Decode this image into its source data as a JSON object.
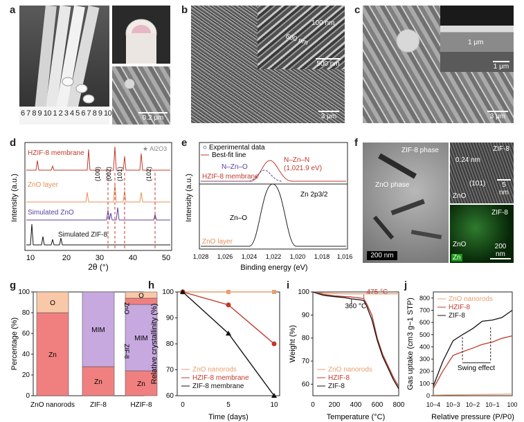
{
  "panel_labels": {
    "a": "a",
    "b": "b",
    "c": "c",
    "d": "d",
    "e": "e",
    "f": "f",
    "g": "g",
    "h": "h",
    "i": "i",
    "j": "j"
  },
  "panel_a": {
    "ruler": "6 7 8 9 10 1 2 3 4 5 6 7 8 9 10",
    "scale": "0.2 μm"
  },
  "panel_b": {
    "scale_main": "3 μm",
    "scale_inset": "500 nm",
    "ann_100": "100 nm",
    "ann_600": "600 nm"
  },
  "panel_c": {
    "scale_main": "3 μm",
    "scale_inset": "1 μm",
    "ann_1um": "1 μm"
  },
  "panel_d": {
    "series": [
      "HZIF-8 membrane",
      "ZnO layer",
      "Simulated ZnO",
      "Simulated ZIF-8"
    ],
    "ylabel": "Intensity (a.u.)",
    "xlabel": "2θ (°)",
    "xticks": [
      "10",
      "20",
      "30",
      "40",
      "50"
    ],
    "legend_star": "★ Al2O3",
    "peaks": [
      "(100)",
      "(002)",
      "(101)",
      "(102)"
    ]
  },
  "panel_e": {
    "legend": [
      "Experimental data",
      "Best-fit line"
    ],
    "labels": {
      "nzno": "N–Zn–O",
      "nznn": "N–Zn–N",
      "nznn_val": "(1,021.9 eV)",
      "hzif": "HZIF-8 membrane",
      "zn2p": "Zn 2p3/2",
      "zno_peak": "Zn–O",
      "zno_layer": "ZnO layer"
    },
    "ylabel": "Intensity (a.u.)",
    "xlabel": "Binding energy (eV)",
    "xticks": [
      "1,028",
      "1,026",
      "1,024",
      "1,022",
      "1,020",
      "1,018",
      "1,016"
    ]
  },
  "panel_f": {
    "labels": {
      "zif_phase": "ZIF-8 phase",
      "zno_phase": "ZnO phase",
      "zif8": "ZIF-8",
      "d024": "0.24 nm",
      "p101": "(101)",
      "zno": "ZnO",
      "zif8b": "ZIF-8",
      "zno2": "ZnO",
      "zn": "Zn"
    },
    "scale_main": "200 nm",
    "scale_hr": "5 nm",
    "scale_map": "200 nm"
  },
  "chart_data": [
    {
      "panel": "g",
      "type": "bar",
      "stacked": true,
      "categories": [
        "ZnO nanorods",
        "ZIF-8",
        "HZIF-8"
      ],
      "series": [
        {
          "name": "Zn",
          "values": [
            80,
            28,
            24
          ]
        },
        {
          "name": "O",
          "values": [
            20,
            0,
            6
          ]
        },
        {
          "name": "MIM",
          "values": [
            0,
            72,
            64
          ]
        },
        {
          "name": "O",
          "values": [
            0,
            0,
            6
          ]
        }
      ],
      "ylabel": "Percentage (%)",
      "ylim": [
        0,
        100
      ],
      "yticks": [
        "0",
        "20",
        "40",
        "60",
        "80",
        "100"
      ],
      "segment_labels": [
        "O",
        "Zn",
        "MIM",
        "Zn",
        "O",
        "Zn",
        "MIM",
        "Zn"
      ],
      "annotations": [
        "ZnO",
        "ZIF-8"
      ],
      "colors": {
        "Zn": "#f08080",
        "O": "#f9c8a8",
        "MIM": "#c7a9e0"
      }
    },
    {
      "panel": "h",
      "type": "line",
      "x": [
        0,
        5,
        10
      ],
      "series": [
        {
          "name": "ZnO nanorods",
          "values": [
            100,
            100,
            100
          ],
          "color": "#e8a070"
        },
        {
          "name": "HZIF-8 membrane",
          "values": [
            100,
            95,
            80
          ],
          "color": "#c0392b"
        },
        {
          "name": "ZIF-8 membrane",
          "values": [
            100,
            84,
            60
          ],
          "color": "#111111"
        }
      ],
      "xlabel": "Time (days)",
      "ylabel": "Relative crystallinity (%)",
      "ylim": [
        60,
        100
      ],
      "xticks": [
        "0",
        "5",
        "10"
      ],
      "yticks": [
        "60",
        "70",
        "80",
        "90",
        "100"
      ]
    },
    {
      "panel": "i",
      "type": "line",
      "x": [
        0,
        100,
        200,
        300,
        360,
        400,
        450,
        475,
        500,
        550,
        600,
        650,
        700,
        750,
        800
      ],
      "series": [
        {
          "name": "ZnO nanorods",
          "values": [
            100,
            99.5,
            99.3,
            99.2,
            99.2,
            99.2,
            99.2,
            99.2,
            99.2,
            99.2,
            99.2,
            99.2,
            99.2,
            99.2,
            99.2
          ],
          "color": "#e8a070"
        },
        {
          "name": "HZIF-8",
          "values": [
            100,
            99,
            98.3,
            98,
            97.8,
            97.6,
            97.3,
            97,
            95,
            90,
            80,
            73,
            68,
            63,
            59
          ],
          "color": "#c0392b"
        },
        {
          "name": "ZIF-8",
          "values": [
            100,
            98.5,
            98,
            97.5,
            97,
            96.8,
            96.5,
            96.2,
            94,
            88,
            79,
            72,
            67,
            62,
            58
          ],
          "color": "#111111"
        }
      ],
      "xlabel": "Temperature (°C)",
      "ylabel": "Weight (%)",
      "ylim": [
        55,
        100
      ],
      "xticks": [
        "0",
        "200",
        "400",
        "600",
        "800"
      ],
      "yticks": [
        "60",
        "70",
        "80",
        "90",
        "100"
      ],
      "annotations": [
        "475 °C",
        "360 °C"
      ]
    },
    {
      "panel": "j",
      "type": "line",
      "x": [
        0.0001,
        0.0003,
        0.001,
        0.003,
        0.01,
        0.03,
        0.1,
        0.3,
        1
      ],
      "series": [
        {
          "name": "ZnO nanorods",
          "values": [
            5,
            6,
            7,
            8,
            9,
            10,
            11,
            12,
            14
          ],
          "color": "#e8a070"
        },
        {
          "name": "HZIF-8",
          "values": [
            60,
            200,
            330,
            360,
            390,
            420,
            440,
            470,
            490
          ],
          "color": "#c0392b"
        },
        {
          "name": "ZIF-8",
          "values": [
            80,
            280,
            450,
            500,
            550,
            610,
            620,
            640,
            700
          ],
          "color": "#111111"
        }
      ],
      "xlabel": "Relative pressure (P/P0)",
      "ylabel": "Gas uptake (cm3 g−1 STP)",
      "ylim": [
        0,
        850
      ],
      "xticks": [
        "10−4",
        "10−3",
        "10−2",
        "10−1",
        "100"
      ],
      "yticks": [
        "0",
        "100",
        "200",
        "300",
        "400",
        "500",
        "600",
        "700",
        "800"
      ],
      "annotations": [
        "Swing effect"
      ]
    }
  ]
}
